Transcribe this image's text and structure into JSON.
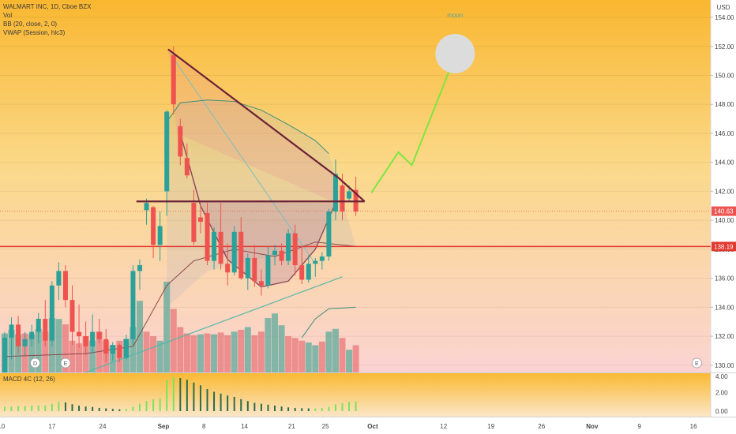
{
  "header": {
    "symbol_line": "WALMART INC, 1D, Cboe BZX",
    "vol_label": "Vol",
    "bb_label": "BB (20, close, 2, 0)",
    "vwap_label": "VWAP (Session, hlc3)",
    "currency": "USD"
  },
  "macd": {
    "label": "MACD 4C (12, 26)"
  },
  "annotations": {
    "moon_text": "moon"
  },
  "markers": {
    "dividend": "D",
    "earnings": "E"
  },
  "chart_data": {
    "type": "candlestick",
    "title": "WALMART INC, 1D, Cboe BZX",
    "currency": "USD",
    "y_ticks": [
      "154.00",
      "152.00",
      "150.00",
      "148.00",
      "146.00",
      "144.00",
      "142.00",
      "140.00",
      "138.00",
      "136.00",
      "134.00",
      "132.00",
      "130.00"
    ],
    "ylim": [
      129.5,
      155.2
    ],
    "last_price_label": "140.63",
    "last_price": 140.63,
    "level_label": "138.19",
    "level_price": 138.19,
    "x_ticks": [
      "10",
      "17",
      "24",
      "Sep",
      "8",
      "14",
      "21",
      "25",
      "Oct",
      "12",
      "19",
      "26",
      "Nov",
      "9",
      "16"
    ],
    "macd_ticks": [
      "4.00",
      "2.00",
      "0.00"
    ],
    "macd_ylim": [
      -0.6,
      4.2
    ],
    "candles": [
      [
        129.5,
        132.3,
        129.5,
        131.9
      ],
      [
        131.9,
        133.3,
        130.4,
        132.8
      ],
      [
        132.8,
        133.4,
        130.8,
        131.3
      ],
      [
        131.3,
        132.3,
        130.6,
        131.8
      ],
      [
        131.8,
        132.8,
        131.3,
        132.3
      ],
      [
        132.3,
        133.6,
        131.5,
        133.2
      ],
      [
        133.2,
        134.5,
        131.3,
        131.7
      ],
      [
        131.7,
        135.8,
        131.3,
        135.5
      ],
      [
        135.5,
        137.1,
        134.5,
        136.5
      ],
      [
        136.5,
        136.9,
        134.0,
        134.5
      ],
      [
        134.5,
        135.5,
        131.4,
        132.3
      ],
      [
        132.3,
        134.2,
        131.2,
        132.0
      ],
      [
        132.0,
        133.0,
        130.7,
        131.3
      ],
      [
        131.3,
        133.5,
        130.8,
        132.3
      ],
      [
        132.3,
        133.2,
        131.5,
        131.8
      ],
      [
        131.8,
        132.5,
        130.2,
        130.8
      ],
      [
        130.8,
        131.6,
        130.3,
        131.4
      ],
      [
        131.4,
        131.5,
        130.2,
        130.5
      ],
      [
        130.5,
        132.1,
        130.4,
        131.8
      ],
      [
        131.8,
        136.9,
        131.4,
        136.5
      ],
      [
        136.5,
        137.3,
        135.2,
        136.9
      ],
      [
        140.7,
        141.5,
        139.7,
        141.2
      ],
      [
        140.9,
        141.0,
        137.4,
        138.3
      ],
      [
        138.3,
        140.6,
        137.2,
        139.6
      ],
      [
        142.0,
        147.6,
        140.3,
        147.5
      ],
      [
        151.4,
        152.0,
        147.3,
        148.0
      ],
      [
        146.5,
        147.0,
        143.8,
        144.4
      ],
      [
        144.3,
        145.3,
        142.9,
        143.1
      ],
      [
        141.2,
        142.1,
        138.3,
        138.5
      ],
      [
        140.2,
        141.1,
        139.1,
        139.9
      ],
      [
        140.5,
        141.2,
        136.9,
        137.2
      ],
      [
        137.2,
        139.5,
        136.6,
        139.2
      ],
      [
        139.2,
        141.2,
        136.6,
        137.0
      ],
      [
        137.0,
        138.4,
        135.5,
        136.4
      ],
      [
        136.4,
        139.6,
        136.2,
        139.2
      ],
      [
        139.2,
        140.2,
        135.9,
        136.0
      ],
      [
        136.0,
        137.7,
        135.2,
        137.4
      ],
      [
        137.4,
        138.3,
        135.4,
        135.8
      ],
      [
        135.8,
        136.6,
        134.8,
        135.5
      ],
      [
        135.5,
        138.2,
        135.3,
        137.6
      ],
      [
        137.6,
        138.3,
        136.9,
        137.9
      ],
      [
        137.9,
        138.4,
        136.9,
        137.2
      ],
      [
        137.2,
        139.4,
        136.9,
        139.1
      ],
      [
        139.1,
        139.7,
        136.2,
        136.9
      ],
      [
        136.9,
        138.2,
        135.6,
        135.9
      ],
      [
        135.9,
        137.6,
        135.7,
        137.0
      ],
      [
        137.0,
        137.4,
        136.1,
        137.2
      ],
      [
        137.2,
        137.8,
        136.6,
        137.5
      ],
      [
        137.5,
        140.8,
        137.2,
        140.6
      ],
      [
        140.6,
        144.2,
        140.0,
        143.2
      ],
      [
        142.4,
        143.2,
        140.0,
        140.6
      ],
      [
        141.5,
        142.4,
        141.3,
        142.0
      ],
      [
        142.1,
        143.0,
        140.3,
        140.6
      ]
    ],
    "volume": [
      [
        0.43,
        "up"
      ],
      [
        0.47,
        "up"
      ],
      [
        0.42,
        "up"
      ],
      [
        0.43,
        "down"
      ],
      [
        0.42,
        "up"
      ],
      [
        0.48,
        "up"
      ],
      [
        0.45,
        "down"
      ],
      [
        0.6,
        "up"
      ],
      [
        0.59,
        "up"
      ],
      [
        0.53,
        "down"
      ],
      [
        0.35,
        "down"
      ],
      [
        0.32,
        "down"
      ],
      [
        0.4,
        "down"
      ],
      [
        0.35,
        "up"
      ],
      [
        0.45,
        "down"
      ],
      [
        0.35,
        "down"
      ],
      [
        0.3,
        "up"
      ],
      [
        0.35,
        "down"
      ],
      [
        0.37,
        "up"
      ],
      [
        0.5,
        "up"
      ],
      [
        0.79,
        "up"
      ],
      [
        0.45,
        "down"
      ],
      [
        0.4,
        "down"
      ],
      [
        0.35,
        "up"
      ],
      [
        1.0,
        "up"
      ],
      [
        0.7,
        "down"
      ],
      [
        0.5,
        "down"
      ],
      [
        0.43,
        "down"
      ],
      [
        0.41,
        "down"
      ],
      [
        0.42,
        "up"
      ],
      [
        0.43,
        "down"
      ],
      [
        0.42,
        "up"
      ],
      [
        0.44,
        "down"
      ],
      [
        0.41,
        "down"
      ],
      [
        0.45,
        "up"
      ],
      [
        0.47,
        "down"
      ],
      [
        0.5,
        "up"
      ],
      [
        0.41,
        "down"
      ],
      [
        0.45,
        "down"
      ],
      [
        0.6,
        "up"
      ],
      [
        0.65,
        "up"
      ],
      [
        0.52,
        "up"
      ],
      [
        0.4,
        "down"
      ],
      [
        0.38,
        "down"
      ],
      [
        0.35,
        "down"
      ],
      [
        0.33,
        "up"
      ],
      [
        0.3,
        "up"
      ],
      [
        0.34,
        "down"
      ],
      [
        0.45,
        "up"
      ],
      [
        0.48,
        "up"
      ],
      [
        0.38,
        "down"
      ],
      [
        0.25,
        "up"
      ],
      [
        0.3,
        "down"
      ]
    ],
    "macd_hist": [
      0.5,
      0.5,
      0.55,
      0.55,
      0.6,
      0.6,
      0.62,
      0.8,
      1.0,
      0.95,
      0.75,
      0.6,
      0.5,
      0.45,
      0.35,
      0.3,
      0.25,
      0.2,
      0.22,
      0.45,
      0.8,
      1.1,
      1.3,
      1.4,
      3.4,
      3.7,
      3.6,
      3.4,
      3.1,
      2.8,
      2.4,
      2.1,
      1.9,
      1.7,
      1.55,
      1.3,
      1.1,
      0.9,
      0.8,
      0.7,
      0.6,
      0.5,
      0.4,
      0.35,
      0.32,
      0.3,
      0.3,
      0.32,
      0.45,
      0.75,
      0.85,
      1.0,
      1.05
    ],
    "bb_upper": [
      [
        24,
        146.8
      ],
      [
        26,
        148.1
      ],
      [
        30,
        148.3
      ],
      [
        34,
        148.2
      ],
      [
        38,
        147.6
      ],
      [
        42,
        146.6
      ],
      [
        46,
        145.5
      ],
      [
        48,
        144.6
      ]
    ],
    "bb_lower": [
      [
        44,
        131.9
      ],
      [
        46,
        133.2
      ],
      [
        48,
        133.9
      ],
      [
        52,
        134.0
      ]
    ],
    "vwap": [
      [
        0,
        130.6
      ],
      [
        12,
        130.8
      ],
      [
        19,
        131.3
      ],
      [
        24,
        135.5
      ],
      [
        28,
        137.2
      ],
      [
        34,
        138.0
      ],
      [
        40,
        137.5
      ],
      [
        46,
        138.5
      ],
      [
        52,
        138.2
      ]
    ],
    "trendlines": {
      "falling_resistance": [
        [
          24.2,
          151.8
        ],
        [
          49.5,
          142.9
        ],
        [
          53.3,
          141.3
        ]
      ],
      "horizontal_resistance": [
        [
          19.5,
          141.3
        ],
        [
          53.3,
          141.3
        ]
      ],
      "rising_support": [
        [
          12,
          129.5
        ],
        [
          50,
          136.1
        ]
      ],
      "cup_curve": [
        [
          26,
          146.0
        ],
        [
          29,
          141.0
        ],
        [
          33,
          137.3
        ],
        [
          38,
          135.4
        ],
        [
          42,
          135.8
        ],
        [
          46,
          138.0
        ],
        [
          49,
          141.2
        ]
      ],
      "projection": [
        [
          54.3,
          141.9
        ],
        [
          58.3,
          144.7
        ],
        [
          60.3,
          143.8
        ],
        [
          66,
          150.5
        ]
      ]
    },
    "moon_target": 151.5
  }
}
